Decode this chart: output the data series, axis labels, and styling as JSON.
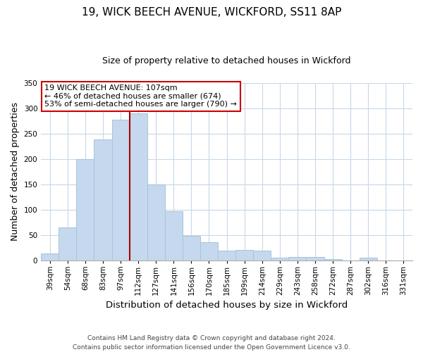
{
  "title": "19, WICK BEECH AVENUE, WICKFORD, SS11 8AP",
  "subtitle": "Size of property relative to detached houses in Wickford",
  "xlabel": "Distribution of detached houses by size in Wickford",
  "ylabel": "Number of detached properties",
  "bar_labels": [
    "39sqm",
    "54sqm",
    "68sqm",
    "83sqm",
    "97sqm",
    "112sqm",
    "127sqm",
    "141sqm",
    "156sqm",
    "170sqm",
    "185sqm",
    "199sqm",
    "214sqm",
    "229sqm",
    "243sqm",
    "258sqm",
    "272sqm",
    "287sqm",
    "302sqm",
    "316sqm",
    "331sqm"
  ],
  "bar_heights": [
    13,
    65,
    200,
    238,
    278,
    290,
    150,
    97,
    48,
    35,
    19,
    20,
    19,
    5,
    6,
    7,
    2,
    0,
    5,
    0,
    0
  ],
  "bar_color": "#c5d8ed",
  "bar_edge_color": "#a8c4dc",
  "vline_color": "#aa0000",
  "vline_bar_index": 4,
  "ylim": [
    0,
    350
  ],
  "yticks": [
    0,
    50,
    100,
    150,
    200,
    250,
    300,
    350
  ],
  "annotation_line1": "19 WICK BEECH AVENUE: 107sqm",
  "annotation_line2": "← 46% of detached houses are smaller (674)",
  "annotation_line3": "53% of semi-detached houses are larger (790) →",
  "annotation_box_color": "#ffffff",
  "annotation_box_edge": "#cc0000",
  "footer_line1": "Contains HM Land Registry data © Crown copyright and database right 2024.",
  "footer_line2": "Contains public sector information licensed under the Open Government Licence v3.0.",
  "background_color": "#ffffff",
  "grid_color": "#c8d8e8",
  "title_fontsize": 11,
  "subtitle_fontsize": 9,
  "ylabel_fontsize": 9,
  "xlabel_fontsize": 9.5,
  "tick_fontsize": 7.5,
  "footer_fontsize": 6.5,
  "ann_fontsize": 8
}
